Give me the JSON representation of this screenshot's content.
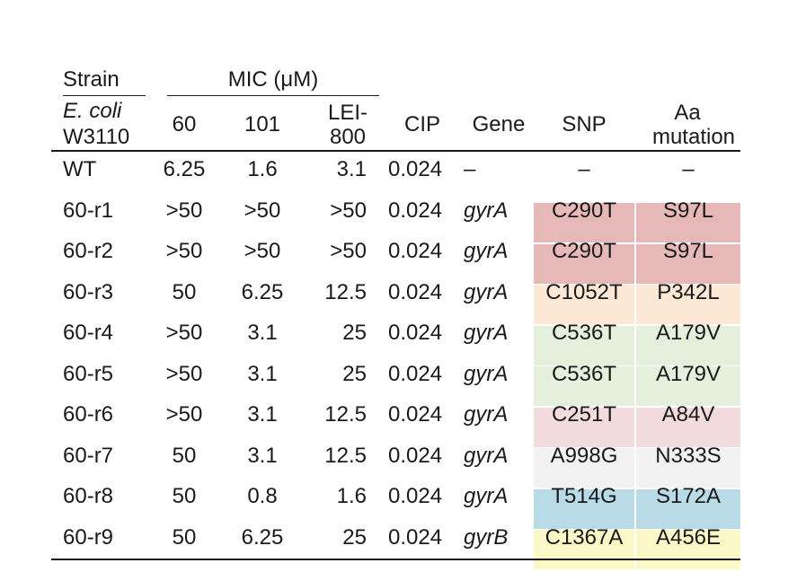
{
  "header": {
    "strain": "Strain",
    "mic": "MIC (μM)",
    "ecoli": "E. coli",
    "w3110": "W3110",
    "col60": "60",
    "col101": "101",
    "lei_top": "LEI-",
    "lei_bottom": "800",
    "cip": "CIP",
    "gene": "Gene",
    "snp": "SNP",
    "aa_top": "Aa",
    "aa_bottom": "mutation"
  },
  "rows": [
    {
      "strain": "WT",
      "c60": "6.25",
      "c101": "1.6",
      "lei": "3.1",
      "cip": "0.024",
      "gene": "–",
      "snp": "–",
      "aa": "–",
      "color": "#ffffff"
    },
    {
      "strain": "60-r1",
      "c60": ">50",
      "c101": ">50",
      "lei": ">50",
      "cip": "0.024",
      "gene": "gyrA",
      "snp": "C290T",
      "aa": "S97L",
      "color": "#e6b8b8"
    },
    {
      "strain": "60-r2",
      "c60": ">50",
      "c101": ">50",
      "lei": ">50",
      "cip": "0.024",
      "gene": "gyrA",
      "snp": "C290T",
      "aa": "S97L",
      "color": "#e6b8b8"
    },
    {
      "strain": "60-r3",
      "c60": "50",
      "c101": "6.25",
      "lei": "12.5",
      "cip": "0.024",
      "gene": "gyrA",
      "snp": "C1052T",
      "aa": "P342L",
      "color": "#fde7d5"
    },
    {
      "strain": "60-r4",
      "c60": ">50",
      "c101": "3.1",
      "lei": "25",
      "cip": "0.024",
      "gene": "gyrA",
      "snp": "C536T",
      "aa": "A179V",
      "color": "#e4efdc"
    },
    {
      "strain": "60-r5",
      "c60": ">50",
      "c101": "3.1",
      "lei": "25",
      "cip": "0.024",
      "gene": "gyrA",
      "snp": "C536T",
      "aa": "A179V",
      "color": "#e4efdc"
    },
    {
      "strain": "60-r6",
      "c60": ">50",
      "c101": "3.1",
      "lei": "12.5",
      "cip": "0.024",
      "gene": "gyrA",
      "snp": "C251T",
      "aa": "A84V",
      "color": "#f2dadd"
    },
    {
      "strain": "60-r7",
      "c60": "50",
      "c101": "3.1",
      "lei": "12.5",
      "cip": "0.024",
      "gene": "gyrA",
      "snp": "A998G",
      "aa": "N333S",
      "color": "#f2f2f2"
    },
    {
      "strain": "60-r8",
      "c60": "50",
      "c101": "0.8",
      "lei": "1.6",
      "cip": "0.024",
      "gene": "gyrA",
      "snp": "T514G",
      "aa": "S172A",
      "color": "#b9dbe8"
    },
    {
      "strain": "60-r9",
      "c60": "50",
      "c101": "6.25",
      "lei": "25",
      "cip": "0.024",
      "gene": "gyrB",
      "snp": "C1367A",
      "aa": "A456E",
      "color": "#fbf8c8"
    }
  ]
}
